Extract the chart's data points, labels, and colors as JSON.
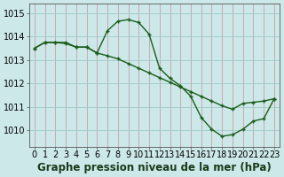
{
  "title": "Graphe pression niveau de la mer (hPa)",
  "bg_color": "#cce8e8",
  "line_color": "#1a5c1a",
  "x_ticks": [
    0,
    1,
    2,
    3,
    4,
    5,
    6,
    7,
    8,
    9,
    10,
    11,
    12,
    13,
    14,
    15,
    16,
    17,
    18,
    19,
    20,
    21,
    22,
    23
  ],
  "ylim": [
    1009.3,
    1015.4
  ],
  "yticks": [
    1010,
    1011,
    1012,
    1013,
    1014,
    1015
  ],
  "line1_x": [
    0,
    1,
    2,
    3,
    4,
    5,
    6,
    7,
    8,
    9,
    10,
    11,
    12,
    13,
    14,
    15,
    16,
    17,
    18,
    19,
    20,
    21,
    22,
    23
  ],
  "line1_y": [
    1013.5,
    1013.75,
    1013.75,
    1013.75,
    1013.55,
    1013.55,
    1013.3,
    1014.25,
    1014.65,
    1014.72,
    1014.6,
    1014.1,
    1012.65,
    1012.22,
    1011.9,
    1011.45,
    1010.55,
    1010.05,
    1009.75,
    1009.82,
    1010.05,
    1010.4,
    1010.5,
    1011.35
  ],
  "line2_x": [
    0,
    1,
    2,
    3,
    4,
    5,
    6,
    7,
    8,
    9,
    10,
    11,
    12,
    13,
    14,
    15,
    16,
    17,
    18,
    19,
    20,
    21,
    22,
    23
  ],
  "line2_y": [
    1013.5,
    1013.75,
    1013.75,
    1013.7,
    1013.55,
    1013.55,
    1013.3,
    1013.18,
    1013.05,
    1012.85,
    1012.65,
    1012.45,
    1012.25,
    1012.05,
    1011.85,
    1011.65,
    1011.45,
    1011.25,
    1011.05,
    1010.9,
    1011.15,
    1011.2,
    1011.25,
    1011.35
  ],
  "title_fontsize": 8.5,
  "tick_fontsize": 7.0
}
